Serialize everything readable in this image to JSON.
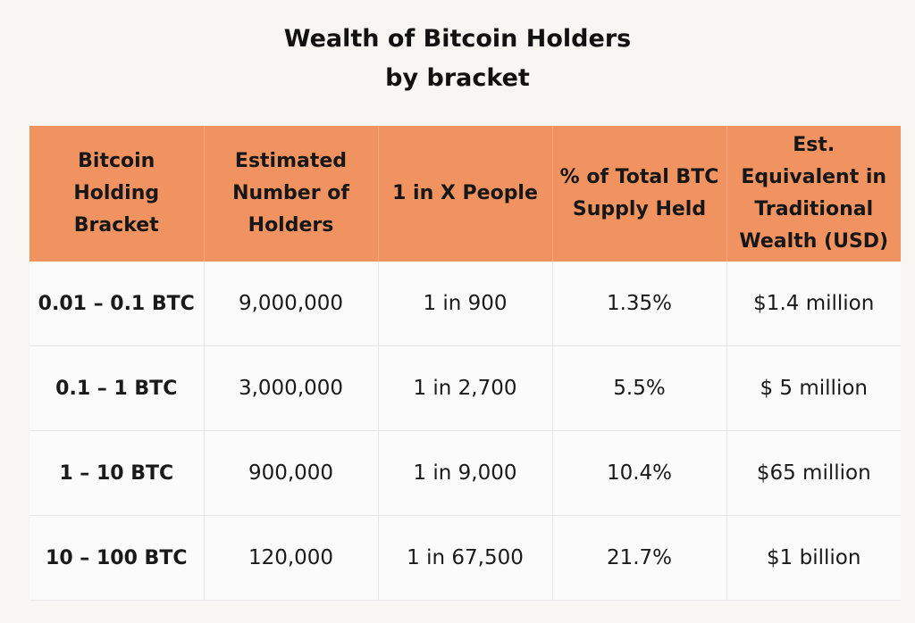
{
  "title": {
    "line1": "Wealth of Bitcoin Holders",
    "line2": "by bracket"
  },
  "table": {
    "headers": [
      "Bitcoin Holding Bracket",
      "Estimated Number of Holders",
      "1 in X People",
      "% of Total BTC Supply Held",
      "Est. Equivalent in Traditional Wealth (USD)"
    ],
    "rows": [
      [
        "0.01 – 0.1 BTC",
        "9,000,000",
        "1 in 900",
        "1.35%",
        "$1.4 million"
      ],
      [
        "0.1 – 1 BTC",
        "3,000,000",
        "1 in 2,700",
        "5.5%",
        "$ 5 million"
      ],
      [
        "1 – 10 BTC",
        "900,000",
        "1 in 9,000",
        "10.4%",
        "$65 million"
      ],
      [
        "10 – 100 BTC",
        "120,000",
        "1 in 67,500",
        "21.7%",
        "$1 billion"
      ]
    ]
  },
  "colors": {
    "header_background": "#f09360",
    "page_background": "#f8f6f3",
    "row_background": "#fbfbfb"
  }
}
